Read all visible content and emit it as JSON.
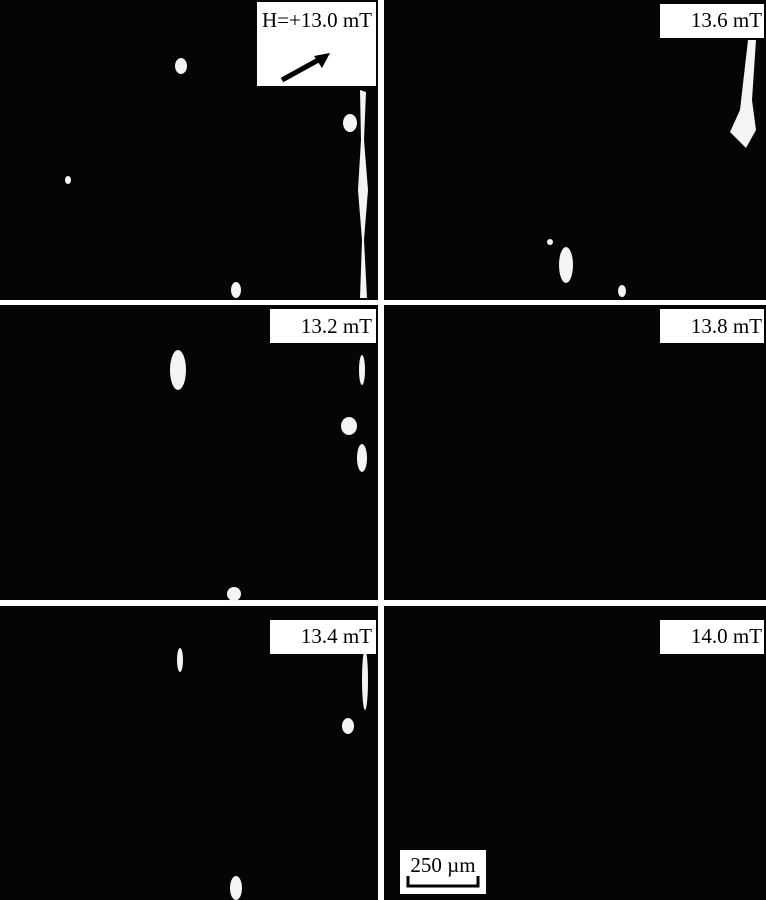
{
  "panels": [
    {
      "label": "H=+13.0 mT"
    },
    {
      "label": "13.6 mT"
    },
    {
      "label": "13.2 mT"
    },
    {
      "label": "13.8 mT"
    },
    {
      "label": "13.4 mT"
    },
    {
      "label": "14.0 mT"
    }
  ],
  "scale_bar": {
    "label": "250 µm"
  }
}
